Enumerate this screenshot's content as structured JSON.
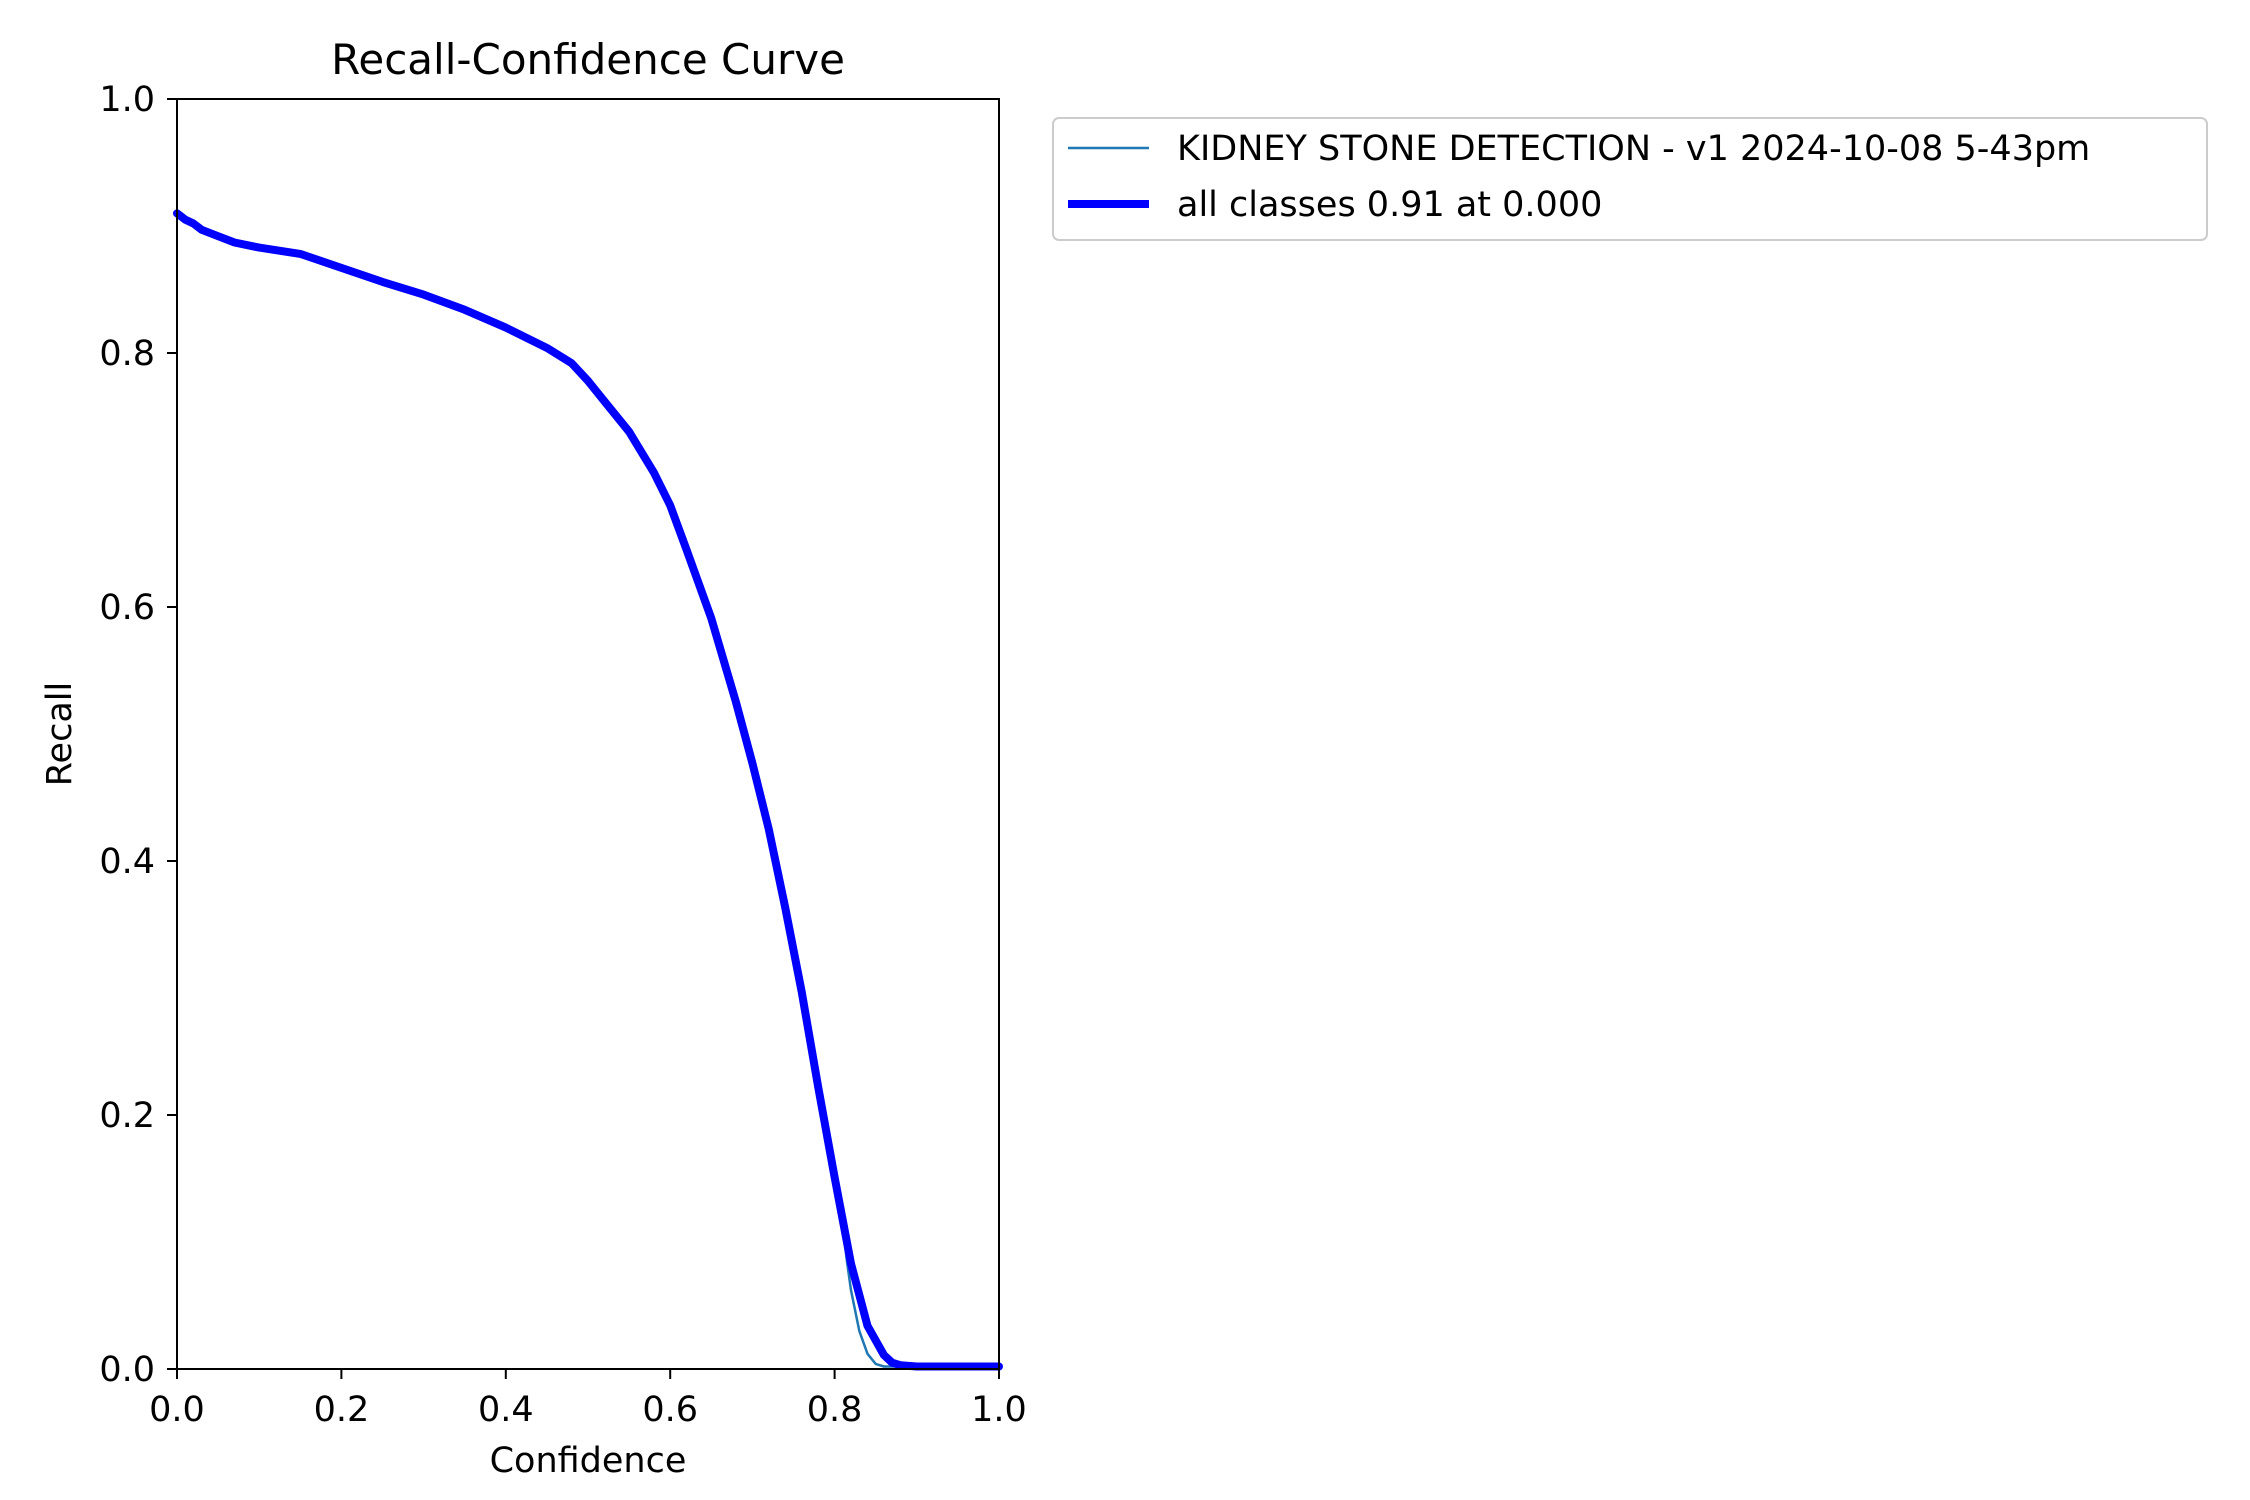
{
  "chart_data": {
    "type": "line",
    "title": "Recall-Confidence Curve",
    "xlabel": "Confidence",
    "ylabel": "Recall",
    "xlim": [
      0,
      1
    ],
    "ylim": [
      0,
      1
    ],
    "xticks": [
      "0.0",
      "0.2",
      "0.4",
      "0.6",
      "0.8",
      "1.0"
    ],
    "yticks": [
      "0.0",
      "0.2",
      "0.4",
      "0.6",
      "0.8",
      "1.0"
    ],
    "grid": false,
    "legend_position": "outside-top-right",
    "series": [
      {
        "name": "KIDNEY STONE DETECTION - v1 2024-10-08 5-43pm",
        "color": "#1f77b4",
        "width": "thin",
        "x": [
          0.0,
          0.01,
          0.02,
          0.03,
          0.05,
          0.07,
          0.1,
          0.15,
          0.2,
          0.25,
          0.3,
          0.35,
          0.4,
          0.45,
          0.48,
          0.5,
          0.52,
          0.55,
          0.58,
          0.6,
          0.62,
          0.65,
          0.68,
          0.7,
          0.72,
          0.74,
          0.76,
          0.78,
          0.8,
          0.81,
          0.815,
          0.82,
          0.83,
          0.84,
          0.85,
          0.86,
          0.88,
          0.9,
          0.95,
          1.0
        ],
        "y": [
          0.91,
          0.905,
          0.902,
          0.897,
          0.892,
          0.887,
          0.883,
          0.878,
          0.867,
          0.856,
          0.846,
          0.834,
          0.82,
          0.804,
          0.792,
          0.778,
          0.762,
          0.738,
          0.706,
          0.68,
          0.645,
          0.591,
          0.525,
          0.477,
          0.425,
          0.363,
          0.297,
          0.222,
          0.151,
          0.112,
          0.085,
          0.062,
          0.03,
          0.012,
          0.004,
          0.002,
          0.002,
          0.002,
          0.002,
          0.002
        ]
      },
      {
        "name": "all classes 0.91 at 0.000",
        "color": "#0000ff",
        "width": "thick",
        "x": [
          0.0,
          0.01,
          0.02,
          0.03,
          0.05,
          0.07,
          0.1,
          0.15,
          0.2,
          0.25,
          0.3,
          0.35,
          0.4,
          0.45,
          0.48,
          0.5,
          0.52,
          0.55,
          0.58,
          0.6,
          0.62,
          0.65,
          0.68,
          0.7,
          0.72,
          0.74,
          0.76,
          0.78,
          0.8,
          0.82,
          0.84,
          0.86,
          0.87,
          0.88,
          0.9,
          0.95,
          1.0
        ],
        "y": [
          0.91,
          0.905,
          0.902,
          0.897,
          0.892,
          0.887,
          0.883,
          0.878,
          0.867,
          0.856,
          0.846,
          0.834,
          0.82,
          0.804,
          0.792,
          0.778,
          0.762,
          0.738,
          0.706,
          0.68,
          0.645,
          0.591,
          0.525,
          0.477,
          0.425,
          0.363,
          0.297,
          0.222,
          0.151,
          0.083,
          0.034,
          0.011,
          0.005,
          0.003,
          0.002,
          0.002,
          0.002
        ]
      }
    ]
  }
}
